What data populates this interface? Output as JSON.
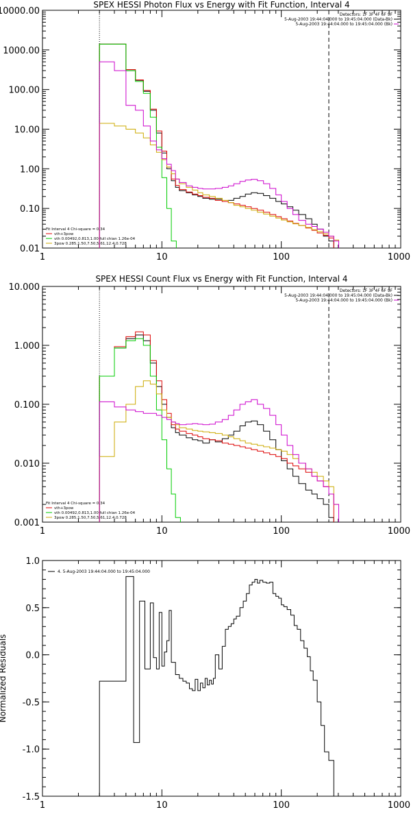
{
  "chart_data": [
    {
      "type": "line",
      "title": "SPEX HESSI Photon Flux vs Energy with Fit Function, Interval 4",
      "xscale": "log",
      "yscale": "log",
      "xlim": [
        1,
        1000
      ],
      "ylim": [
        0.01,
        10000
      ],
      "x_ticks": [
        "1",
        "10",
        "100",
        "1000"
      ],
      "y_ticks": [
        "0.01",
        "0.10",
        "1.00",
        "10.00",
        "100.00",
        "1000.00",
        "10000.00"
      ],
      "y_tick_values": [
        0.01,
        0.1,
        1,
        10,
        100,
        1000,
        10000
      ],
      "vlines": [
        {
          "x": 3,
          "style": "dotted"
        },
        {
          "x": 250,
          "style": "dashed"
        }
      ],
      "header_legend": [
        "Detectors: 1F 3F 4F 6F 9F",
        "5-Aug-2003 19:44:04.000 to 19:45:04.000 (Data-Bk)",
        "5-Aug-2003 19:44:04.000 to 19:45:04.000 (Bk)"
      ],
      "fit_legend": [
        "Fit Interval  4    Chi-square = 0.34",
        "vth+3pow",
        "vth 0.00492,0.813,1.00  full chian 1.26e-04",
        "3pow  0.285,1.50,7.50,5.61,12.4,0.728"
      ],
      "series": [
        {
          "name": "5-Aug-2003 19:44:04.000 to 19:45:04.000 (Data-Bk)",
          "color": "#000000",
          "x": [
            3,
            4,
            5,
            6,
            7,
            8,
            9,
            10,
            11,
            12,
            13,
            14,
            16,
            18,
            20,
            22,
            25,
            28,
            32,
            36,
            40,
            45,
            50,
            56,
            63,
            71,
            80,
            90,
            100,
            112,
            125,
            140,
            160,
            180,
            200,
            225,
            250
          ],
          "values": [
            1400,
            1400,
            300,
            170,
            90,
            30,
            8,
            2.5,
            1.0,
            0.5,
            0.34,
            0.28,
            0.25,
            0.22,
            0.2,
            0.18,
            0.17,
            0.17,
            0.15,
            0.16,
            0.18,
            0.2,
            0.23,
            0.25,
            0.24,
            0.21,
            0.18,
            0.15,
            0.13,
            0.11,
            0.09,
            0.07,
            0.055,
            0.04,
            0.03,
            0.02,
            0.015
          ]
        },
        {
          "name": "vth+3pow",
          "color": "#dd0000",
          "x": [
            3,
            4,
            5,
            6,
            7,
            8,
            9,
            10,
            11,
            12,
            13,
            14,
            16,
            18,
            20,
            22,
            25,
            28,
            32,
            36,
            40,
            45,
            50,
            56,
            63,
            71,
            80,
            90,
            100,
            112,
            125,
            140,
            160,
            180,
            200,
            225,
            250
          ],
          "values": [
            1400,
            1400,
            320,
            175,
            95,
            32,
            9,
            2.8,
            1.1,
            0.55,
            0.38,
            0.3,
            0.26,
            0.23,
            0.21,
            0.19,
            0.18,
            0.16,
            0.15,
            0.14,
            0.13,
            0.12,
            0.11,
            0.1,
            0.09,
            0.08,
            0.07,
            0.062,
            0.055,
            0.048,
            0.042,
            0.037,
            0.032,
            0.028,
            0.024,
            0.021,
            0.018
          ]
        },
        {
          "name": "vth 0.00492,0.813,1.00  full chian 1.26e-04",
          "color": "#00cc00",
          "x": [
            3,
            4,
            5,
            6,
            7,
            8,
            9,
            10,
            11,
            12
          ],
          "values": [
            1400,
            1400,
            300,
            160,
            80,
            20,
            3.5,
            0.6,
            0.1,
            0.015
          ]
        },
        {
          "name": "3pow  0.285,1.50,7.50,5.61,12.4,0.728",
          "color": "#ccaa00",
          "x": [
            3,
            4,
            5,
            6,
            7,
            8,
            9,
            10,
            11,
            12,
            13,
            14,
            16,
            18,
            20,
            22,
            25,
            28,
            32,
            36,
            40,
            45,
            50,
            56,
            63,
            71,
            80,
            90,
            100,
            112,
            125,
            140,
            160,
            180,
            200,
            225,
            250,
            275
          ],
          "values": [
            14,
            12,
            10,
            8,
            6,
            4,
            2.6,
            1.7,
            1.1,
            0.75,
            0.55,
            0.42,
            0.34,
            0.29,
            0.25,
            0.22,
            0.2,
            0.18,
            0.16,
            0.14,
            0.12,
            0.11,
            0.1,
            0.09,
            0.08,
            0.072,
            0.064,
            0.057,
            0.051,
            0.046,
            0.041,
            0.037,
            0.033,
            0.029,
            0.026,
            0.023,
            0.02,
            0.016
          ]
        },
        {
          "name": "5-Aug-2003 19:44:04.000 to 19:45:04.000 (Bk)",
          "color": "#cc00cc",
          "x": [
            3,
            4,
            5,
            6,
            7,
            8,
            9,
            10,
            11,
            12,
            13,
            14,
            16,
            18,
            20,
            22,
            25,
            28,
            32,
            36,
            40,
            45,
            50,
            56,
            63,
            71,
            80,
            90,
            100,
            112,
            125,
            140,
            160,
            180,
            200,
            225,
            250,
            275
          ],
          "values": [
            500,
            300,
            40,
            30,
            12,
            5,
            3,
            1.8,
            1.3,
            0.9,
            0.55,
            0.45,
            0.37,
            0.34,
            0.32,
            0.31,
            0.31,
            0.32,
            0.34,
            0.37,
            0.42,
            0.48,
            0.52,
            0.54,
            0.5,
            0.42,
            0.32,
            0.22,
            0.15,
            0.1,
            0.07,
            0.05,
            0.04,
            0.035,
            0.03,
            0.025,
            0.02,
            0.015
          ]
        }
      ]
    },
    {
      "type": "line",
      "title": "SPEX HESSI Count Flux vs Energy with Fit Function, Interval 4",
      "xscale": "log",
      "yscale": "log",
      "xlim": [
        1,
        1000
      ],
      "ylim": [
        0.001,
        10
      ],
      "x_ticks": [
        "1",
        "10",
        "100",
        "1000"
      ],
      "y_ticks": [
        "0.001",
        "0.010",
        "0.100",
        "1.000",
        "10.000"
      ],
      "y_tick_values": [
        0.001,
        0.01,
        0.1,
        1,
        10
      ],
      "vlines": [
        {
          "x": 3,
          "style": "dotted"
        },
        {
          "x": 250,
          "style": "dashed"
        }
      ],
      "header_legend": [
        "Detectors: 1F 3F 4F 6F 9F",
        "5-Aug-2003 19:44:04.000 to 19:45:04.000 (Data-Bk)",
        "5-Aug-2003 19:44:04.000 to 19:45:04.000 (Bk)"
      ],
      "fit_legend": [
        "Fit Interval  4    Chi-square = 0.34",
        "vth+3pow",
        "vth 0.00492,0.813,1.00  full chian 1.26e-04",
        "3pow  0.285,1.50,7.50,5.61,12.4,0.728"
      ],
      "series": [
        {
          "name": "5-Aug-2003 19:44:04.000 to 19:45:04.000 (Data-Bk)",
          "color": "#000000",
          "x": [
            3,
            4,
            5,
            6,
            7,
            8,
            9,
            10,
            11,
            12,
            13,
            14,
            16,
            18,
            20,
            22,
            25,
            28,
            32,
            36,
            40,
            45,
            50,
            56,
            63,
            71,
            80,
            90,
            100,
            112,
            125,
            140,
            160,
            180,
            200,
            225,
            250
          ],
          "values": [
            0.3,
            0.9,
            1.3,
            1.5,
            1.2,
            0.5,
            0.2,
            0.1,
            0.06,
            0.04,
            0.033,
            0.03,
            0.027,
            0.025,
            0.024,
            0.022,
            0.025,
            0.023,
            0.026,
            0.03,
            0.035,
            0.043,
            0.05,
            0.052,
            0.045,
            0.035,
            0.025,
            0.017,
            0.011,
            0.008,
            0.006,
            0.0045,
            0.0035,
            0.003,
            0.0025,
            0.002,
            0.0012
          ]
        },
        {
          "name": "vth+3pow",
          "color": "#dd0000",
          "x": [
            3,
            4,
            5,
            6,
            7,
            8,
            9,
            10,
            11,
            12,
            13,
            14,
            16,
            18,
            20,
            22,
            25,
            28,
            32,
            36,
            40,
            45,
            50,
            56,
            63,
            71,
            80,
            90,
            100,
            112,
            125,
            140,
            160,
            180,
            200,
            225,
            250
          ],
          "values": [
            0.3,
            0.95,
            1.4,
            1.7,
            1.5,
            0.55,
            0.25,
            0.12,
            0.07,
            0.045,
            0.038,
            0.035,
            0.032,
            0.03,
            0.028,
            0.026,
            0.025,
            0.024,
            0.022,
            0.021,
            0.02,
            0.019,
            0.018,
            0.017,
            0.016,
            0.015,
            0.014,
            0.013,
            0.012,
            0.01,
            0.009,
            0.008,
            0.007,
            0.006,
            0.005,
            0.004,
            0.003
          ]
        },
        {
          "name": "vth 0.00492,0.813,1.00  full chian 1.26e-04",
          "color": "#00cc00",
          "x": [
            3,
            4,
            5,
            6,
            7,
            8,
            9,
            10,
            11,
            12,
            13
          ],
          "values": [
            0.3,
            0.9,
            1.2,
            1.3,
            1.0,
            0.3,
            0.08,
            0.025,
            0.008,
            0.003,
            0.0012
          ]
        },
        {
          "name": "3pow  0.285,1.50,7.50,5.61,12.4,0.728",
          "color": "#ccaa00",
          "x": [
            3,
            4,
            5,
            6,
            7,
            8,
            9,
            10,
            11,
            12,
            13,
            14,
            16,
            18,
            20,
            22,
            25,
            28,
            32,
            36,
            40,
            45,
            50,
            56,
            63,
            71,
            80,
            90,
            100,
            112,
            125,
            140,
            160,
            180,
            200,
            225,
            250,
            275
          ],
          "values": [
            0.013,
            0.05,
            0.1,
            0.2,
            0.25,
            0.22,
            0.15,
            0.08,
            0.06,
            0.05,
            0.045,
            0.04,
            0.038,
            0.036,
            0.035,
            0.034,
            0.033,
            0.032,
            0.03,
            0.028,
            0.026,
            0.024,
            0.022,
            0.021,
            0.02,
            0.019,
            0.018,
            0.017,
            0.016,
            0.014,
            0.012,
            0.01,
            0.008,
            0.007,
            0.006,
            0.005,
            0.004,
            0.002
          ]
        },
        {
          "name": "5-Aug-2003 19:44:04.000 to 19:45:04.000 (Bk)",
          "color": "#cc00cc",
          "x": [
            3,
            4,
            5,
            6,
            7,
            8,
            9,
            10,
            11,
            12,
            13,
            14,
            16,
            18,
            20,
            22,
            25,
            28,
            32,
            36,
            40,
            45,
            50,
            56,
            63,
            71,
            80,
            90,
            100,
            112,
            125,
            140,
            160,
            180,
            200,
            225,
            250,
            275
          ],
          "values": [
            0.11,
            0.09,
            0.08,
            0.075,
            0.07,
            0.07,
            0.065,
            0.06,
            0.055,
            0.05,
            0.047,
            0.045,
            0.046,
            0.047,
            0.046,
            0.045,
            0.046,
            0.05,
            0.055,
            0.065,
            0.08,
            0.1,
            0.11,
            0.12,
            0.1,
            0.085,
            0.065,
            0.045,
            0.03,
            0.02,
            0.014,
            0.01,
            0.008,
            0.006,
            0.005,
            0.004,
            0.003,
            0.002
          ]
        }
      ]
    },
    {
      "type": "line",
      "title": "",
      "xscale": "log",
      "yscale": "linear",
      "xlim": [
        1,
        1000
      ],
      "ylim": [
        -1.5,
        1.0
      ],
      "ylabel": "Normalized Residuals",
      "x_ticks": [
        "1",
        "10",
        "100",
        "1000"
      ],
      "y_ticks": [
        "1.0",
        "0.5",
        "0.0",
        "-0.5",
        "-1.0",
        "-1.5"
      ],
      "y_tick_values": [
        1.0,
        0.5,
        0.0,
        -0.5,
        -1.0,
        -1.5
      ],
      "legend": [
        "4.  5-Aug-2003 19:44:04.000 to 19:45:04.000"
      ],
      "series": [
        {
          "name": "4.  5-Aug-2003 19:44:04.000 to 19:45:04.000",
          "color": "#000000",
          "x": [
            3,
            4,
            5,
            5.8,
            6.5,
            7.2,
            8,
            8.5,
            9,
            9.5,
            10,
            10.5,
            11,
            11.5,
            12,
            13,
            14,
            15,
            16,
            17,
            18,
            19,
            20,
            21,
            22,
            23,
            24,
            25,
            26,
            27,
            28,
            30,
            32,
            34,
            36,
            38,
            40,
            42,
            45,
            48,
            51,
            54,
            57,
            60,
            63,
            66,
            70,
            75,
            80,
            85,
            90,
            95,
            100,
            105,
            112,
            120,
            128,
            136,
            145,
            155,
            165,
            175,
            185,
            200,
            215,
            230,
            250
          ],
          "values": [
            -0.28,
            -0.28,
            0.83,
            -0.93,
            0.57,
            -0.15,
            0.55,
            -0.03,
            -0.15,
            0.45,
            -0.12,
            0.03,
            0.15,
            0.47,
            -0.08,
            -0.21,
            -0.25,
            -0.28,
            -0.3,
            -0.36,
            -0.38,
            -0.26,
            -0.38,
            -0.3,
            -0.35,
            -0.25,
            -0.32,
            -0.27,
            -0.31,
            -0.25,
            0.0,
            -0.15,
            0.09,
            0.27,
            0.3,
            0.33,
            0.38,
            0.41,
            0.5,
            0.57,
            0.65,
            0.74,
            0.77,
            0.8,
            0.76,
            0.79,
            0.77,
            0.76,
            0.77,
            0.65,
            0.62,
            0.6,
            0.53,
            0.51,
            0.48,
            0.42,
            0.31,
            0.27,
            0.15,
            0.07,
            -0.02,
            -0.17,
            -0.27,
            -0.5,
            -0.75,
            -1.03,
            -1.12
          ]
        }
      ]
    }
  ]
}
